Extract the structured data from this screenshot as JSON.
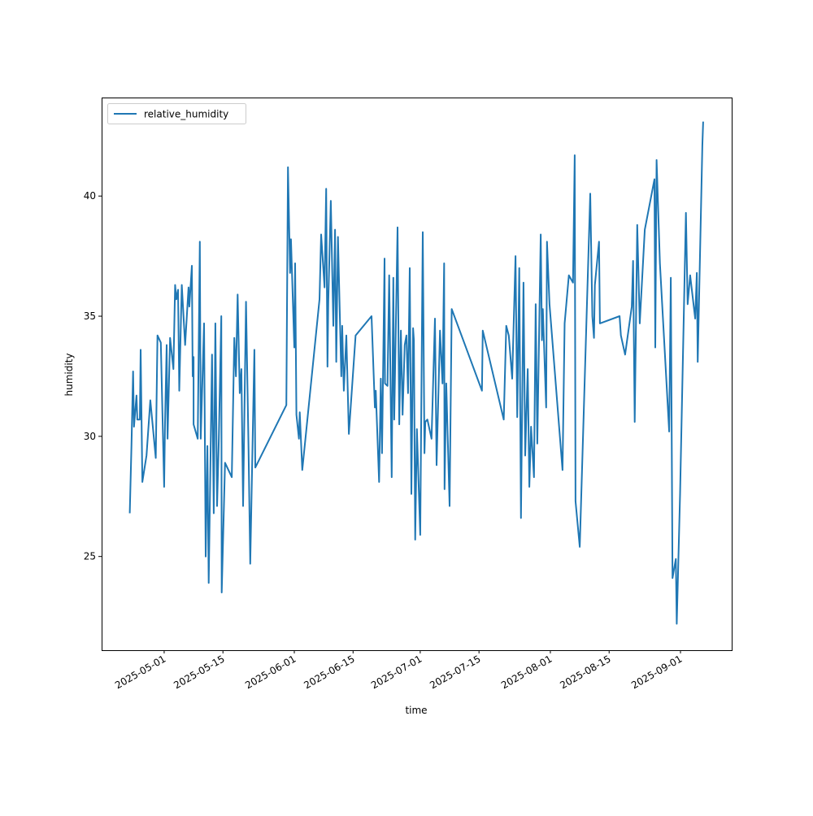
{
  "chart_data": {
    "type": "line",
    "title": "",
    "xlabel": "time",
    "ylabel": "humidity",
    "x_unit": "days since 2025-05-01",
    "xlim": [
      -14.9,
      135.2
    ],
    "ylim": [
      21.1,
      44.1
    ],
    "grid": false,
    "legend": {
      "placement": "top-left",
      "entries": [
        "relative_humidity"
      ]
    },
    "x_ticks": [
      {
        "label": "2025-05-01",
        "value": 0
      },
      {
        "label": "2025-05-15",
        "value": 14
      },
      {
        "label": "2025-06-01",
        "value": 31
      },
      {
        "label": "2025-06-15",
        "value": 45
      },
      {
        "label": "2025-07-01",
        "value": 61
      },
      {
        "label": "2025-07-15",
        "value": 75
      },
      {
        "label": "2025-08-01",
        "value": 92
      },
      {
        "label": "2025-08-15",
        "value": 106
      },
      {
        "label": "2025-09-01",
        "value": 123
      }
    ],
    "y_ticks": [
      {
        "label": "25",
        "value": 25
      },
      {
        "label": "30",
        "value": 30
      },
      {
        "label": "35",
        "value": 35
      },
      {
        "label": "40",
        "value": 40
      }
    ],
    "series": [
      {
        "name": "relative_humidity",
        "color": "#1f77b4",
        "x": [
          -8.2,
          -7.8,
          -7.4,
          -7.2,
          -6.6,
          -6.4,
          -5.8,
          -5.6,
          -5.2,
          -4.2,
          -3.3,
          -2.0,
          -1.6,
          -0.8,
          0,
          0.2,
          0.6,
          0.8,
          1.4,
          2.2,
          2.6,
          2.9,
          3.3,
          3.6,
          4.2,
          5.0,
          5.8,
          6.0,
          6.6,
          6.8,
          7.0,
          7.0,
          8.0,
          8.5,
          8.7,
          9.5,
          9.9,
          10.3,
          10.6,
          11.4,
          11.8,
          12.2,
          12.6,
          13.0,
          13.6,
          13.7,
          14.5,
          16.1,
          16.7,
          17.1,
          17.5,
          18.0,
          18.4,
          18.8,
          19.5,
          20.1,
          20.5,
          21.5,
          21.7,
          29.1,
          29.5,
          30.0,
          30.2,
          31.0,
          31.2,
          31.5,
          32.1,
          32.3,
          32.9,
          37.0,
          37.4,
          38.2,
          38.6,
          38.9,
          39.1,
          39.7,
          40.3,
          40.7,
          41.0,
          41.4,
          42.2,
          42.4,
          42.8,
          43.4,
          44.0,
          45.6,
          49.4,
          50.2,
          50.4,
          51.2,
          51.6,
          51.9,
          52.5,
          52.6,
          53.2,
          53.6,
          54.2,
          54.6,
          54.8,
          55.6,
          56.0,
          56.4,
          56.8,
          57.3,
          57.7,
          58.1,
          58.5,
          58.9,
          59.3,
          59.5,
          59.8,
          60.2,
          61.0,
          61.6,
          62.0,
          62.2,
          62.7,
          63.7,
          64.5,
          64.9,
          65.7,
          66.3,
          66.7,
          66.8,
          67.2,
          68.0,
          68.5,
          75.7,
          75.9,
          80.9,
          81.5,
          82.1,
          82.9,
          83.7,
          84.1,
          84.6,
          85.0,
          85.6,
          86.0,
          86.6,
          87.0,
          87.4,
          88.1,
          88.5,
          88.9,
          89.7,
          90.0,
          90.2,
          91.0,
          91.2,
          91.8,
          94.9,
          95.4,
          96.4,
          97.4,
          97.8,
          98.0,
          99.0,
          101.5,
          102.0,
          102.4,
          102.6,
          103.6,
          103.8,
          108.5,
          108.8,
          109.8,
          111.4,
          111.7,
          112.1,
          112.7,
          113.3,
          114.5,
          116.8,
          117.0,
          117.3,
          118.1,
          120.3,
          120.7,
          121.1,
          121.9,
          122.1,
          122.9,
          124.3,
          124.7,
          125.3,
          126.5,
          126.9,
          127.1,
          128.2,
          128.4
        ],
        "y": [
          26.8,
          29.6,
          32.7,
          30.4,
          31.7,
          30.7,
          30.7,
          33.6,
          28.1,
          29.2,
          31.5,
          29.1,
          34.2,
          33.9,
          27.9,
          30.6,
          33.8,
          29.9,
          34.1,
          32.8,
          36.3,
          35.7,
          36.1,
          31.9,
          36.3,
          33.8,
          36.2,
          35.4,
          37.1,
          32.5,
          33.3,
          30.5,
          29.9,
          38.1,
          29.9,
          34.7,
          25.0,
          29.6,
          23.9,
          33.4,
          26.8,
          34.7,
          27.1,
          29.8,
          35.0,
          23.5,
          28.9,
          28.3,
          34.1,
          32.5,
          35.9,
          31.8,
          32.8,
          27.1,
          35.6,
          29.5,
          24.7,
          33.6,
          28.7,
          31.3,
          41.2,
          36.8,
          38.2,
          33.7,
          37.2,
          30.9,
          29.9,
          31.0,
          28.6,
          35.7,
          38.4,
          36.2,
          40.3,
          32.9,
          35.6,
          39.8,
          34.6,
          38.6,
          33.1,
          38.3,
          32.5,
          34.6,
          31.9,
          34.2,
          30.1,
          34.2,
          35.0,
          31.2,
          31.9,
          28.1,
          32.4,
          29.3,
          37.4,
          32.2,
          32.1,
          36.7,
          28.3,
          36.6,
          30.7,
          38.7,
          30.5,
          34.4,
          30.9,
          33.8,
          34.2,
          31.8,
          37.0,
          27.6,
          34.5,
          34.0,
          25.7,
          30.3,
          25.9,
          38.5,
          29.3,
          30.6,
          30.7,
          29.9,
          34.9,
          28.8,
          34.4,
          32.2,
          37.2,
          27.8,
          32.2,
          27.1,
          35.3,
          31.9,
          34.4,
          30.7,
          34.6,
          34.2,
          32.4,
          37.5,
          30.8,
          37.0,
          26.6,
          36.4,
          29.2,
          32.8,
          27.9,
          30.4,
          28.3,
          35.5,
          29.7,
          38.4,
          34.0,
          35.3,
          31.2,
          38.1,
          35.5,
          28.6,
          34.7,
          36.7,
          36.4,
          41.7,
          27.3,
          25.4,
          40.1,
          35.0,
          34.1,
          36.3,
          38.1,
          34.7,
          35.0,
          34.2,
          33.4,
          35.4,
          37.3,
          30.6,
          38.8,
          34.7,
          38.6,
          40.7,
          33.7,
          41.5,
          37.2,
          30.2,
          36.6,
          24.1,
          24.9,
          22.2,
          27.6,
          39.3,
          35.5,
          36.7,
          34.9,
          36.8,
          33.1,
          42.1,
          43.1
        ]
      }
    ]
  }
}
